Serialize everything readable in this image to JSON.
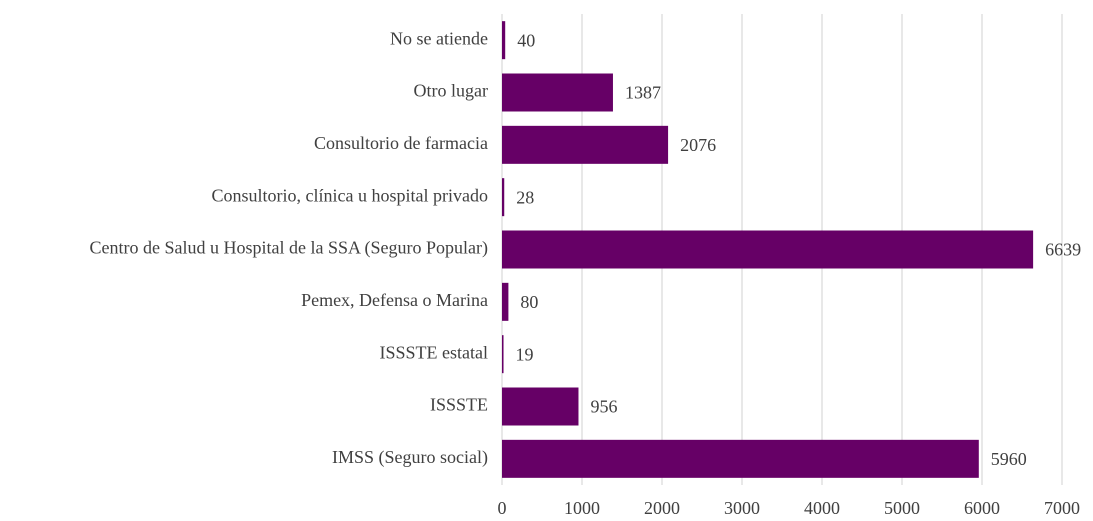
{
  "chart_data": {
    "type": "barh",
    "categories": [
      "No se atiende",
      "Otro lugar",
      "Consultorio de farmacia",
      "Consultorio, clínica u hospital privado",
      "Centro de Salud u Hospital de la SSA (Seguro Popular)",
      "Pemex, Defensa o Marina",
      "ISSSTE estatal",
      "ISSSTE",
      "IMSS (Seguro social)"
    ],
    "values": [
      40,
      1387,
      2076,
      28,
      6639,
      80,
      19,
      956,
      5960
    ],
    "color": "#660066",
    "xlim": [
      0,
      7000
    ],
    "xticks": [
      0,
      1000,
      2000,
      3000,
      4000,
      5000,
      6000,
      7000
    ],
    "grid": true
  }
}
